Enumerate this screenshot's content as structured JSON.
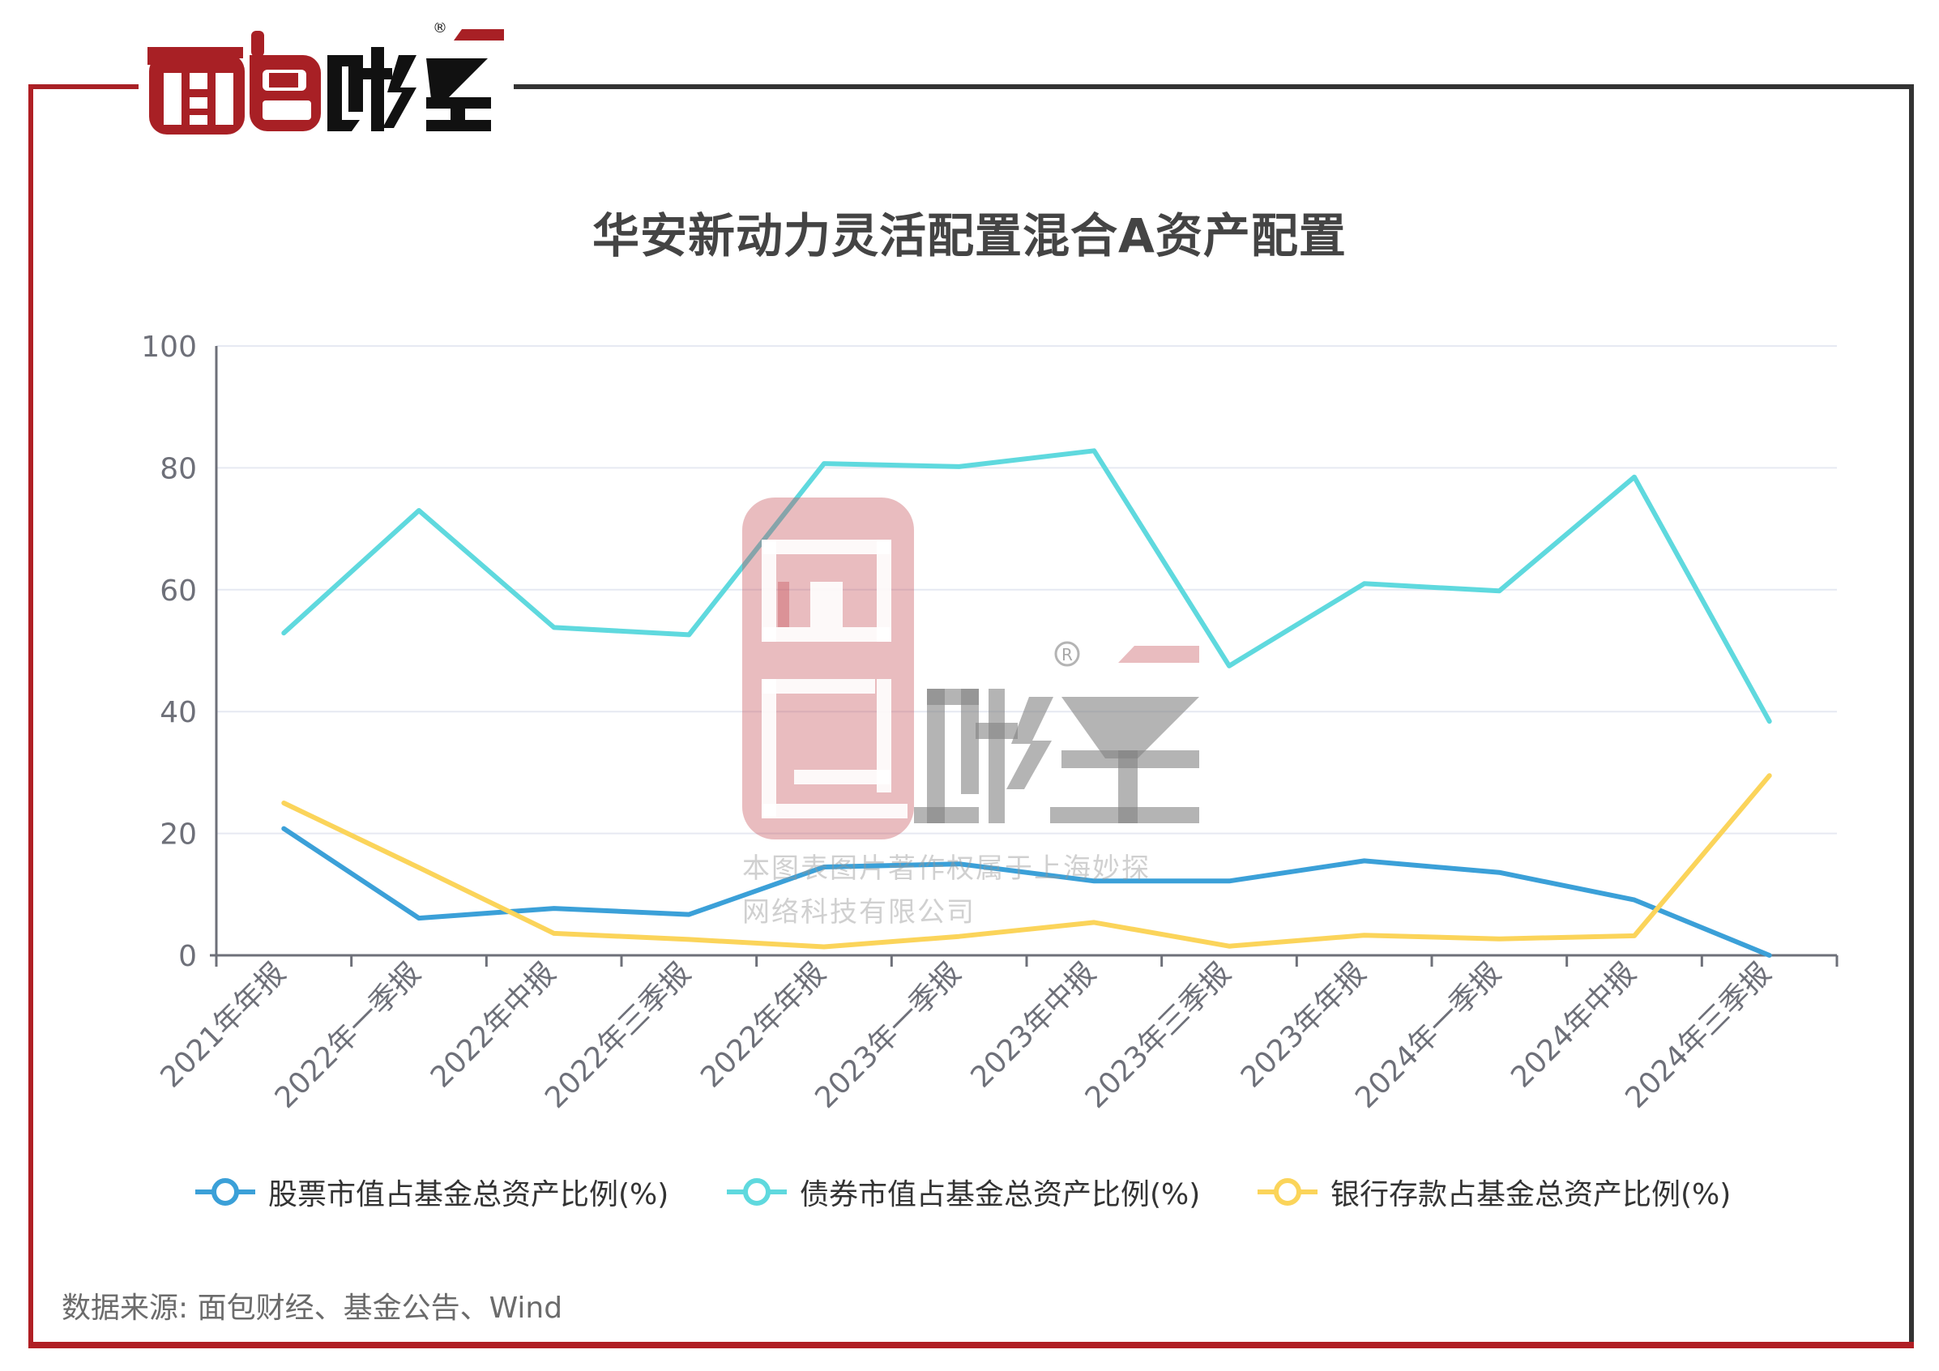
{
  "brand": {
    "name": "面包财经",
    "registered_mark": "®",
    "colors": {
      "red": "#a82025",
      "dark": "#111111",
      "frame_dark": "#333333"
    }
  },
  "header": {
    "title": "华安新动力灵活配置混合A资产配置"
  },
  "watermark": {
    "line1": "本图表图片著作权属于上海妙探",
    "line2": "网络科技有限公司"
  },
  "footer": {
    "source": "数据来源: 面包财经、基金公告、Wind"
  },
  "legend": [
    {
      "label": "股票市值占基金总资产比例(%)",
      "color": "#3ba0d8",
      "icon": "circle-line-marker-icon"
    },
    {
      "label": "债券市值占基金总资产比例(%)",
      "color": "#5fd9de",
      "icon": "circle-line-marker-icon"
    },
    {
      "label": "银行存款占基金总资产比例(%)",
      "color": "#fbd45a",
      "icon": "circle-line-marker-icon"
    }
  ],
  "chart_data": {
    "type": "line",
    "title": "华安新动力灵活配置混合A资产配置",
    "xlabel": "",
    "ylabel": "",
    "ylim": [
      0,
      100
    ],
    "yticks": [
      0,
      20,
      40,
      60,
      80,
      100
    ],
    "grid": true,
    "legend_position": "bottom",
    "categories": [
      "2021年年报",
      "2022年一季报",
      "2022年中报",
      "2022年三季报",
      "2022年年报",
      "2023年一季报",
      "2023年中报",
      "2023年三季报",
      "2023年年报",
      "2024年一季报",
      "2024年中报",
      "2024年三季报"
    ],
    "series": [
      {
        "name": "股票市值占基金总资产比例(%)",
        "color": "#3ba0d8",
        "values": [
          20.8,
          6.1,
          7.7,
          6.7,
          14.5,
          15.0,
          12.2,
          12.2,
          15.5,
          13.6,
          9.1,
          0.0
        ]
      },
      {
        "name": "债券市值占基金总资产比例(%)",
        "color": "#5fd9de",
        "values": [
          52.9,
          73.0,
          53.8,
          52.6,
          80.7,
          80.2,
          82.8,
          47.5,
          61.0,
          59.8,
          78.5,
          38.4
        ]
      },
      {
        "name": "银行存款占基金总资产比例(%)",
        "color": "#fbd45a",
        "values": [
          25.0,
          14.4,
          3.6,
          2.6,
          1.4,
          3.1,
          5.4,
          1.5,
          3.3,
          2.7,
          3.2,
          29.5
        ]
      }
    ]
  }
}
